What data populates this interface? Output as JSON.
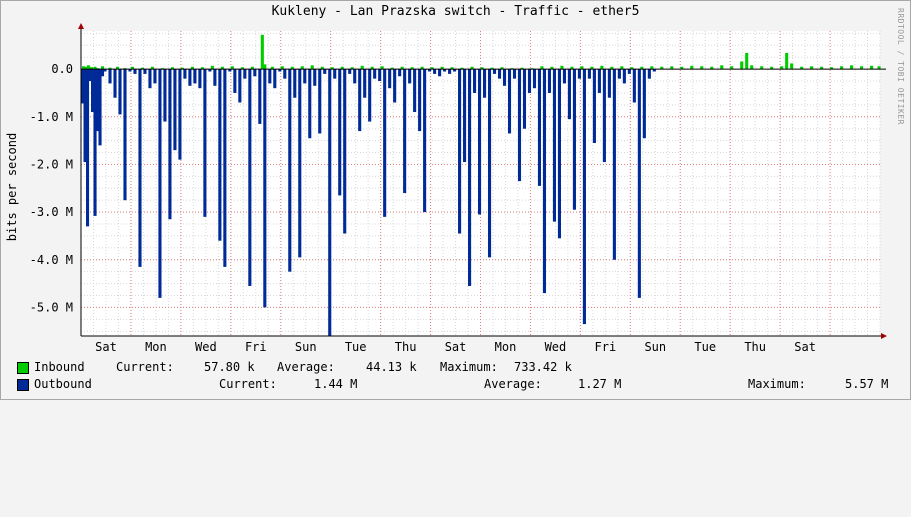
{
  "title": "Kukleny - Lan Prazska switch - Traffic - ether5",
  "watermark": "RRDTOOL / TOBI OETIKER",
  "colors": {
    "inbound": "#00cc00",
    "outbound": "#002a97",
    "grid_major": "#e08080",
    "grid_minor": "#d8d8d8",
    "background": "#f3f3f3",
    "plot_bg": "#ffffff"
  },
  "chart_data": {
    "type": "area",
    "title": "Kukleny - Lan Prazska switch - Traffic - ether5",
    "ylabel": "bits per second",
    "ylim": [
      -5.6,
      0.8
    ],
    "y_unit": "M",
    "yticks": [
      {
        "value": 0.0,
        "label": "0.0"
      },
      {
        "value": -1.0,
        "label": "-1.0 M"
      },
      {
        "value": -2.0,
        "label": "-2.0 M"
      },
      {
        "value": -3.0,
        "label": "-3.0 M"
      },
      {
        "value": -4.0,
        "label": "-4.0 M"
      },
      {
        "value": -5.0,
        "label": "-5.0 M"
      }
    ],
    "xlim": [
      0,
      16
    ],
    "xticks": [
      {
        "value": 0.5,
        "label": "Sat"
      },
      {
        "value": 1.5,
        "label": "Mon"
      },
      {
        "value": 2.5,
        "label": "Wed"
      },
      {
        "value": 3.5,
        "label": "Fri"
      },
      {
        "value": 4.5,
        "label": "Sun"
      },
      {
        "value": 5.5,
        "label": "Tue"
      },
      {
        "value": 6.5,
        "label": "Thu"
      },
      {
        "value": 7.5,
        "label": "Sat"
      },
      {
        "value": 8.5,
        "label": "Mon"
      },
      {
        "value": 9.5,
        "label": "Wed"
      },
      {
        "value": 10.5,
        "label": "Fri"
      },
      {
        "value": 11.5,
        "label": "Sun"
      },
      {
        "value": 12.5,
        "label": "Tue"
      },
      {
        "value": 13.5,
        "label": "Thu"
      },
      {
        "value": 14.5,
        "label": "Sat"
      }
    ],
    "day_boundaries": [
      0,
      1,
      2,
      3,
      4,
      5,
      6,
      7,
      8,
      9,
      10,
      11,
      12,
      13,
      14,
      15
    ],
    "grid": true,
    "series": [
      {
        "name": "Inbound",
        "values": [
          [
            0.02,
            0.06
          ],
          [
            0.06,
            0.05
          ],
          [
            0.12,
            0.08
          ],
          [
            0.18,
            0.04
          ],
          [
            0.25,
            0.05
          ],
          [
            0.3,
            0.02
          ],
          [
            0.4,
            0.06
          ],
          [
            0.55,
            0.03
          ],
          [
            0.7,
            0.05
          ],
          [
            0.85,
            0.02
          ],
          [
            1.0,
            0.05
          ],
          [
            1.2,
            0.03
          ],
          [
            1.4,
            0.05
          ],
          [
            1.6,
            0.02
          ],
          [
            1.8,
            0.04
          ],
          [
            2.0,
            0.03
          ],
          [
            2.2,
            0.05
          ],
          [
            2.4,
            0.04
          ],
          [
            2.6,
            0.07
          ],
          [
            2.8,
            0.05
          ],
          [
            3.0,
            0.06
          ],
          [
            3.2,
            0.04
          ],
          [
            3.4,
            0.05
          ],
          [
            3.6,
            0.72
          ],
          [
            3.65,
            0.1
          ],
          [
            3.8,
            0.05
          ],
          [
            4.0,
            0.06
          ],
          [
            4.2,
            0.05
          ],
          [
            4.4,
            0.06
          ],
          [
            4.6,
            0.08
          ],
          [
            4.8,
            0.05
          ],
          [
            5.0,
            0.04
          ],
          [
            5.2,
            0.05
          ],
          [
            5.4,
            0.04
          ],
          [
            5.6,
            0.07
          ],
          [
            5.8,
            0.05
          ],
          [
            6.0,
            0.06
          ],
          [
            6.2,
            0.03
          ],
          [
            6.4,
            0.05
          ],
          [
            6.6,
            0.04
          ],
          [
            6.8,
            0.05
          ],
          [
            7.0,
            0.04
          ],
          [
            7.2,
            0.05
          ],
          [
            7.4,
            0.04
          ],
          [
            7.6,
            0.03
          ],
          [
            7.8,
            0.05
          ],
          [
            8.0,
            0.04
          ],
          [
            8.2,
            0.03
          ],
          [
            8.4,
            0.04
          ],
          [
            8.6,
            0.02
          ],
          [
            8.8,
            0.03
          ],
          [
            9.0,
            0.02
          ],
          [
            9.2,
            0.06
          ],
          [
            9.4,
            0.05
          ],
          [
            9.6,
            0.07
          ],
          [
            9.8,
            0.05
          ],
          [
            10.0,
            0.06
          ],
          [
            10.2,
            0.05
          ],
          [
            10.4,
            0.07
          ],
          [
            10.6,
            0.05
          ],
          [
            10.8,
            0.06
          ],
          [
            11.0,
            0.04
          ],
          [
            11.2,
            0.05
          ],
          [
            11.4,
            0.06
          ],
          [
            11.6,
            0.05
          ],
          [
            11.8,
            0.06
          ],
          [
            12.0,
            0.05
          ],
          [
            12.2,
            0.07
          ],
          [
            12.4,
            0.06
          ],
          [
            12.6,
            0.05
          ],
          [
            12.8,
            0.08
          ],
          [
            13.0,
            0.06
          ],
          [
            13.2,
            0.16
          ],
          [
            13.3,
            0.34
          ],
          [
            13.4,
            0.08
          ],
          [
            13.6,
            0.06
          ],
          [
            13.8,
            0.05
          ],
          [
            14.0,
            0.06
          ],
          [
            14.1,
            0.34
          ],
          [
            14.2,
            0.12
          ],
          [
            14.4,
            0.05
          ],
          [
            14.6,
            0.06
          ],
          [
            14.8,
            0.05
          ],
          [
            15.0,
            0.04
          ],
          [
            15.2,
            0.06
          ],
          [
            15.4,
            0.08
          ],
          [
            15.6,
            0.06
          ],
          [
            15.8,
            0.07
          ],
          [
            15.95,
            0.06
          ]
        ]
      },
      {
        "name": "Outbound",
        "values": [
          [
            0.0,
            -0.72
          ],
          [
            0.05,
            -1.95
          ],
          [
            0.1,
            -3.3
          ],
          [
            0.15,
            -0.25
          ],
          [
            0.2,
            -0.9
          ],
          [
            0.25,
            -3.08
          ],
          [
            0.3,
            -1.3
          ],
          [
            0.35,
            -1.6
          ],
          [
            0.4,
            -0.15
          ],
          [
            0.45,
            -0.05
          ],
          [
            0.55,
            -0.3
          ],
          [
            0.65,
            -0.6
          ],
          [
            0.75,
            -0.95
          ],
          [
            0.85,
            -2.75
          ],
          [
            0.95,
            -0.05
          ],
          [
            1.05,
            -0.1
          ],
          [
            1.15,
            -4.15
          ],
          [
            1.25,
            -0.1
          ],
          [
            1.35,
            -0.4
          ],
          [
            1.45,
            -0.3
          ],
          [
            1.55,
            -4.8
          ],
          [
            1.65,
            -1.1
          ],
          [
            1.75,
            -3.15
          ],
          [
            1.85,
            -1.7
          ],
          [
            1.95,
            -1.9
          ],
          [
            2.05,
            -0.2
          ],
          [
            2.15,
            -0.35
          ],
          [
            2.25,
            -0.3
          ],
          [
            2.35,
            -0.4
          ],
          [
            2.45,
            -3.1
          ],
          [
            2.55,
            -0.05
          ],
          [
            2.65,
            -0.35
          ],
          [
            2.75,
            -3.6
          ],
          [
            2.85,
            -4.15
          ],
          [
            2.95,
            -0.05
          ],
          [
            3.05,
            -0.5
          ],
          [
            3.15,
            -0.7
          ],
          [
            3.25,
            -0.2
          ],
          [
            3.35,
            -4.55
          ],
          [
            3.45,
            -0.15
          ],
          [
            3.55,
            -1.15
          ],
          [
            3.65,
            -5.0
          ],
          [
            3.75,
            -0.3
          ],
          [
            3.85,
            -0.4
          ],
          [
            3.95,
            -0.05
          ],
          [
            4.05,
            -0.2
          ],
          [
            4.15,
            -4.25
          ],
          [
            4.25,
            -0.6
          ],
          [
            4.35,
            -3.95
          ],
          [
            4.45,
            -0.3
          ],
          [
            4.55,
            -1.45
          ],
          [
            4.65,
            -0.35
          ],
          [
            4.75,
            -1.35
          ],
          [
            4.85,
            -0.1
          ],
          [
            4.95,
            -5.6
          ],
          [
            5.05,
            -0.2
          ],
          [
            5.15,
            -2.65
          ],
          [
            5.25,
            -3.45
          ],
          [
            5.35,
            -0.1
          ],
          [
            5.45,
            -0.3
          ],
          [
            5.55,
            -1.3
          ],
          [
            5.65,
            -0.6
          ],
          [
            5.75,
            -1.1
          ],
          [
            5.85,
            -0.2
          ],
          [
            5.95,
            -0.25
          ],
          [
            6.05,
            -3.1
          ],
          [
            6.15,
            -0.4
          ],
          [
            6.25,
            -0.7
          ],
          [
            6.35,
            -0.15
          ],
          [
            6.45,
            -2.6
          ],
          [
            6.55,
            -0.3
          ],
          [
            6.65,
            -0.9
          ],
          [
            6.75,
            -1.3
          ],
          [
            6.85,
            -3.0
          ],
          [
            6.95,
            -0.05
          ],
          [
            7.05,
            -0.1
          ],
          [
            7.15,
            -0.15
          ],
          [
            7.25,
            -0.05
          ],
          [
            7.35,
            -0.1
          ],
          [
            7.45,
            -0.05
          ],
          [
            7.55,
            -3.45
          ],
          [
            7.65,
            -1.95
          ],
          [
            7.75,
            -4.55
          ],
          [
            7.85,
            -0.5
          ],
          [
            7.95,
            -3.05
          ],
          [
            8.05,
            -0.6
          ],
          [
            8.15,
            -3.95
          ],
          [
            8.25,
            -0.1
          ],
          [
            8.35,
            -0.2
          ],
          [
            8.45,
            -0.35
          ],
          [
            8.55,
            -1.35
          ],
          [
            8.65,
            -0.2
          ],
          [
            8.75,
            -2.35
          ],
          [
            8.85,
            -1.25
          ],
          [
            8.95,
            -0.5
          ],
          [
            9.05,
            -0.4
          ],
          [
            9.15,
            -2.45
          ],
          [
            9.25,
            -4.7
          ],
          [
            9.35,
            -0.5
          ],
          [
            9.45,
            -3.2
          ],
          [
            9.55,
            -3.55
          ],
          [
            9.65,
            -0.3
          ],
          [
            9.75,
            -1.05
          ],
          [
            9.85,
            -2.95
          ],
          [
            9.95,
            -0.2
          ],
          [
            10.05,
            -5.35
          ],
          [
            10.15,
            -0.2
          ],
          [
            10.25,
            -1.55
          ],
          [
            10.35,
            -0.5
          ],
          [
            10.45,
            -1.95
          ],
          [
            10.55,
            -0.6
          ],
          [
            10.65,
            -4.0
          ],
          [
            10.75,
            -0.2
          ],
          [
            10.85,
            -0.3
          ],
          [
            10.95,
            -0.1
          ],
          [
            11.05,
            -0.7
          ],
          [
            11.15,
            -4.8
          ],
          [
            11.25,
            -1.45
          ],
          [
            11.35,
            -0.2
          ],
          [
            11.45,
            -0.05
          ]
        ]
      }
    ]
  },
  "legend": {
    "inbound": {
      "name": "Inbound",
      "current_label": "Current:",
      "current": "57.80 k",
      "average_label": "Average:",
      "average": "44.13 k",
      "maximum_label": "Maximum:",
      "maximum": "733.42 k"
    },
    "outbound": {
      "name": "Outbound",
      "current_label": "Current:",
      "current": "1.44 M",
      "average_label": "Average:",
      "average": "1.27 M",
      "maximum_label": "Maximum:",
      "maximum": "5.57 M"
    }
  }
}
